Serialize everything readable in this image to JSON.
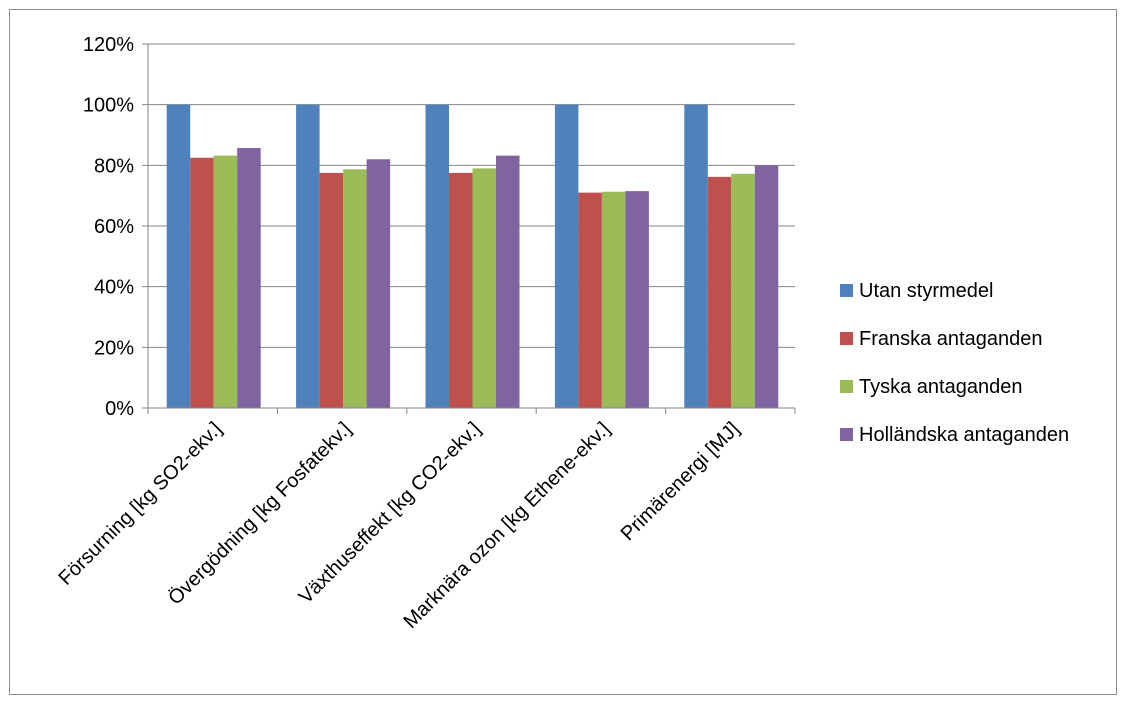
{
  "chart_data": {
    "type": "bar",
    "categories": [
      "Försurning [kg SO2-ekv.]",
      "Övergödning [kg Fosfatekv.]",
      "Växthuseffekt [kg CO2-ekv.]",
      "Marknära ozon [kg Ethene-ekv.]",
      "Primärenergi [MJ]"
    ],
    "series": [
      {
        "name": "Utan styrmedel",
        "color": "#4f81bd",
        "values": [
          100,
          100,
          100,
          100,
          100
        ]
      },
      {
        "name": "Franska antaganden",
        "color": "#c0504d",
        "values": [
          82.5,
          77.5,
          77.5,
          71,
          76.2
        ]
      },
      {
        "name": "Tyska antaganden",
        "color": "#9bbb59",
        "values": [
          83.2,
          78.7,
          79,
          71.3,
          77.2
        ]
      },
      {
        "name": "Holländska antaganden",
        "color": "#8064a2",
        "values": [
          85.7,
          82,
          83.2,
          71.5,
          80
        ]
      }
    ],
    "ylim": [
      0,
      120
    ],
    "yticks": [
      0,
      20,
      40,
      60,
      80,
      100,
      120
    ],
    "ytick_labels": [
      "0%",
      "20%",
      "40%",
      "60%",
      "80%",
      "100%",
      "120%"
    ],
    "grid": true,
    "legend_position": "right"
  }
}
